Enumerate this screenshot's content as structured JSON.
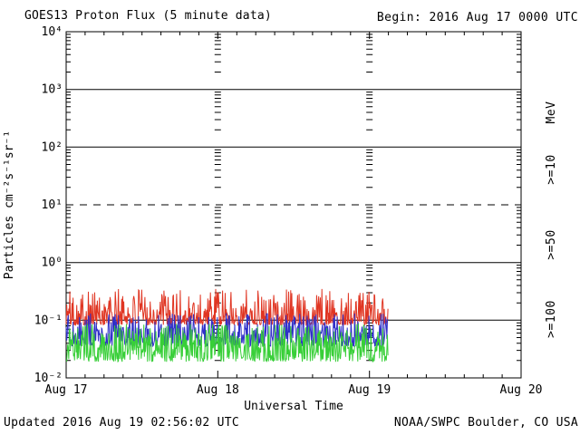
{
  "header": {
    "title": "GOES13 Proton Flux (5 minute data)",
    "begin": "Begin: 2016 Aug 17 0000 UTC"
  },
  "footer": {
    "updated": "Updated 2016 Aug 19 02:56:02 UTC",
    "source": "NOAA/SWPC Boulder, CO USA"
  },
  "chart_data": {
    "type": "line",
    "title": "GOES13 Proton Flux (5 minute data)",
    "begin_time": "2016 Aug 17 0000 UTC",
    "updated_time": "2016 Aug 19 02:56:02 UTC",
    "xlabel": "Universal Time",
    "ylabel": "Particles cm⁻²s⁻¹sr⁻¹",
    "right_axis_unit": "MeV",
    "x_tick_labels": [
      "Aug 17",
      "Aug 18",
      "Aug 19",
      "Aug 20"
    ],
    "y_tick_labels": [
      "10⁴",
      "10³",
      "10²",
      "10¹",
      "10⁰",
      "10⁻¹",
      "10⁻²"
    ],
    "y_log_max": 4,
    "y_log_min": -2,
    "x_days": 3,
    "minor_x_tick_hours": 3,
    "solid_gridline_logs": [
      3,
      2,
      0,
      -1
    ],
    "dashed_gridline_log": 1,
    "day_gridlines_at_days": [
      1,
      2
    ],
    "data_span_days": [
      0,
      2.122
    ],
    "series": [
      {
        "label": ">=10",
        "unit": "MeV",
        "color": "#e03522",
        "log10_min": -1.08,
        "log10_max": -0.45,
        "skew": 2.2,
        "typical_flux_range": [
          0.08,
          0.35
        ],
        "character": "instrument background noise band around 1.2e-1"
      },
      {
        "label": ">=50",
        "unit": "MeV",
        "color": "#3030c8",
        "log10_min": -1.45,
        "log10_max": -0.88,
        "skew": 1.8,
        "typical_flux_range": [
          0.035,
          0.13
        ],
        "character": "instrument background noise band around 5e-2"
      },
      {
        "label": ">=100",
        "unit": "MeV",
        "color": "#38cf38",
        "log10_min": -1.72,
        "log10_max": -1.06,
        "skew": 1.6,
        "typical_flux_range": [
          0.019,
          0.087
        ],
        "character": "instrument background noise band around 3e-2"
      }
    ]
  }
}
